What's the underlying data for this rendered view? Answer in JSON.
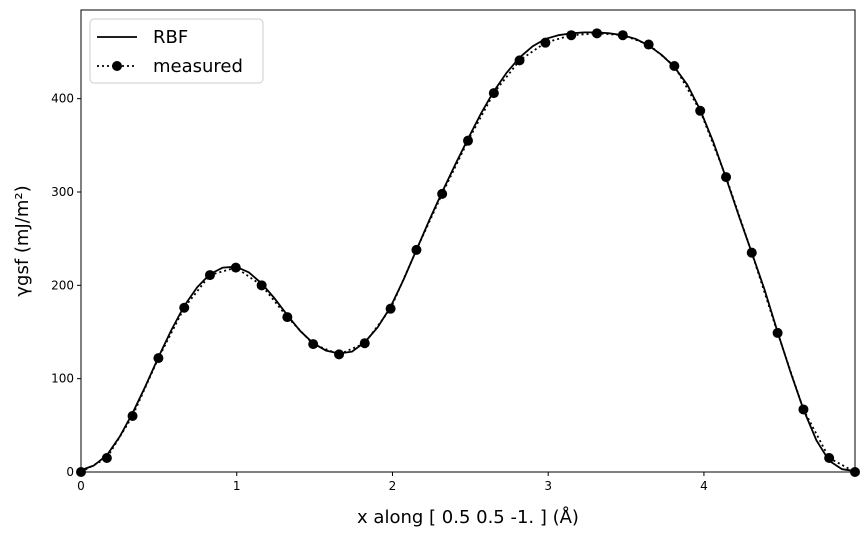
{
  "chart_data": {
    "type": "line",
    "xlabel": "x along [ 0.5  0.5 -1. ] (Å)",
    "ylabel": "γgsf (mJ/m²)",
    "xlim": [
      0,
      4.97
    ],
    "ylim": [
      0,
      495
    ],
    "x_ticks": [
      "0",
      "1",
      "2",
      "3",
      "4"
    ],
    "y_ticks": [
      "0",
      "100",
      "200",
      "300",
      "400"
    ],
    "legend_position": "top-left",
    "grid": false,
    "series": [
      {
        "name": "RBF",
        "style": "solid-line",
        "color": "#000000",
        "x": [
          0,
          0.083,
          0.166,
          0.249,
          0.331,
          0.414,
          0.497,
          0.58,
          0.663,
          0.746,
          0.828,
          0.911,
          0.994,
          1.077,
          1.16,
          1.243,
          1.325,
          1.408,
          1.491,
          1.574,
          1.657,
          1.74,
          1.822,
          1.905,
          1.988,
          2.071,
          2.154,
          2.237,
          2.319,
          2.402,
          2.485,
          2.568,
          2.651,
          2.734,
          2.816,
          2.899,
          2.982,
          3.065,
          3.148,
          3.231,
          3.313,
          3.396,
          3.479,
          3.562,
          3.645,
          3.728,
          3.81,
          3.893,
          3.976,
          4.059,
          4.142,
          4.225,
          4.307,
          4.39,
          4.473,
          4.556,
          4.639,
          4.722,
          4.804,
          4.887,
          4.97
        ],
        "y": [
          2,
          7,
          18,
          38,
          63,
          92,
          123,
          152,
          178,
          198,
          212,
          219,
          220,
          214,
          202,
          186,
          168,
          151,
          138,
          130,
          127,
          129,
          139,
          155,
          177,
          206,
          238,
          270,
          300,
          329,
          357,
          384,
          408,
          428,
          444,
          456,
          464,
          468,
          470,
          471,
          471,
          470,
          468,
          464,
          457,
          447,
          434,
          415,
          388,
          354,
          315,
          274,
          235,
          195,
          150,
          107,
          67,
          34,
          12,
          3,
          1
        ]
      },
      {
        "name": "measured",
        "style": "dotted-line-with-circle-markers",
        "color": "#000000",
        "x": [
          0,
          0.166,
          0.331,
          0.497,
          0.663,
          0.828,
          0.994,
          1.16,
          1.325,
          1.491,
          1.657,
          1.822,
          1.988,
          2.154,
          2.319,
          2.485,
          2.651,
          2.816,
          2.982,
          3.148,
          3.313,
          3.479,
          3.645,
          3.81,
          3.976,
          4.142,
          4.307,
          4.473,
          4.639,
          4.804,
          4.97
        ],
        "y": [
          0,
          15,
          60,
          122,
          176,
          211,
          219,
          200,
          166,
          137,
          126,
          138,
          175,
          238,
          298,
          355,
          406,
          441,
          460,
          468,
          470,
          468,
          458,
          435,
          387,
          316,
          235,
          149,
          67,
          15,
          0
        ]
      }
    ]
  }
}
